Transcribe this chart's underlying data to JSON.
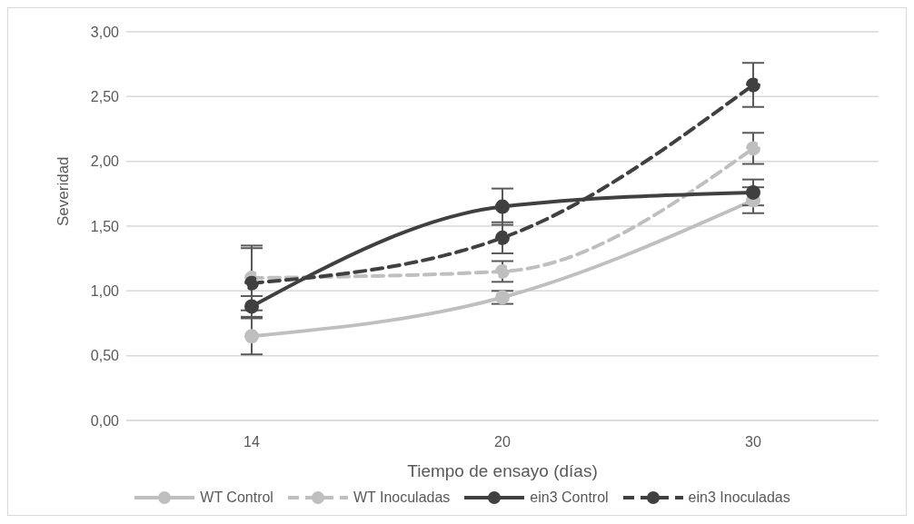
{
  "chart_data": {
    "type": "line",
    "xlabel": "Tiempo de ensayo (días)",
    "ylabel": "Severidad",
    "categories": [
      "14",
      "20",
      "30"
    ],
    "ylim": [
      0,
      3
    ],
    "yticks": [
      {
        "value": 0,
        "label": "0,00"
      },
      {
        "value": 0.5,
        "label": "0,50"
      },
      {
        "value": 1,
        "label": "1,00"
      },
      {
        "value": 1.5,
        "label": "1,50"
      },
      {
        "value": 2,
        "label": "2,00"
      },
      {
        "value": 2.5,
        "label": "2,50"
      },
      {
        "value": 3,
        "label": "3,00"
      }
    ],
    "grid": "y",
    "legend": "bottom",
    "marker": "circle",
    "series": [
      {
        "name": "WT Control",
        "color": "#bfbfbf",
        "line_style": "solid",
        "values": [
          0.65,
          0.95,
          1.7
        ],
        "errors": [
          0.14,
          0.05,
          0.1
        ]
      },
      {
        "name": "WT Inoculadas",
        "color": "#bfbfbf",
        "line_style": "dashed",
        "values": [
          1.1,
          1.15,
          2.1
        ],
        "errors": [
          0.25,
          0.08,
          0.12
        ]
      },
      {
        "name": "ein3 Control",
        "color": "#404040",
        "line_style": "solid",
        "values": [
          0.88,
          1.65,
          1.76
        ],
        "errors": [
          0.08,
          0.14,
          0.1
        ]
      },
      {
        "name": "ein3 Inoculadas",
        "color": "#404040",
        "line_style": "dashed",
        "values": [
          1.06,
          1.41,
          2.59
        ],
        "errors": [
          0.27,
          0.12,
          0.17
        ]
      }
    ]
  }
}
